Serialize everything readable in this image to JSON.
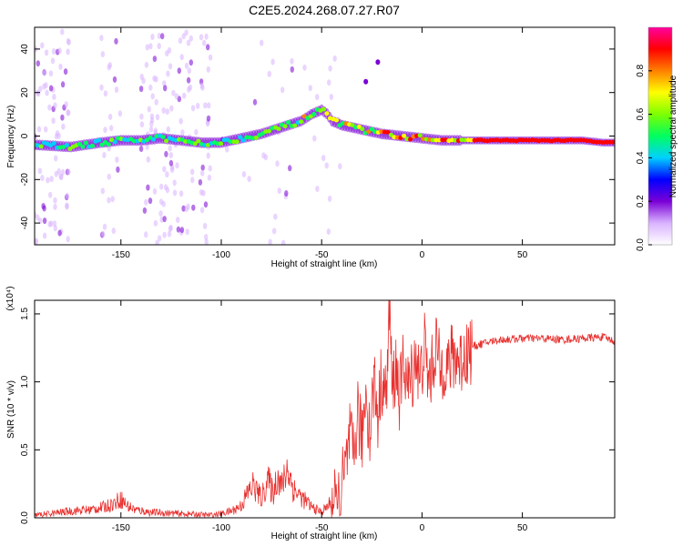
{
  "chart_data": [
    {
      "type": "heatmap",
      "title": "C2E5.2024.268.07.27.R07",
      "xlabel": "Height of straight line (km)",
      "ylabel": "Frequency (Hz)",
      "xlim": [
        -193,
        96
      ],
      "ylim": [
        -50,
        50
      ],
      "xticks": [
        -150,
        -100,
        -50,
        0,
        50
      ],
      "yticks": [
        -40,
        -20,
        0,
        20,
        40
      ],
      "ridge": {
        "x": [
          -193,
          -175,
          -160,
          -150,
          -140,
          -130,
          -120,
          -110,
          -100,
          -90,
          -80,
          -70,
          -60,
          -55,
          -50,
          -47,
          -45,
          -40,
          -30,
          -20,
          -10,
          0,
          10,
          20,
          40,
          60,
          80,
          90,
          96
        ],
        "freq": [
          -4,
          -5,
          -3,
          -2,
          -2,
          -1,
          -2,
          -3,
          -3,
          -1,
          1,
          4,
          7,
          10,
          12,
          10,
          7,
          5,
          3,
          1,
          0,
          -1,
          -2,
          -2,
          -2,
          -2,
          -2,
          -3,
          -3
        ]
      },
      "outliers": [
        {
          "x": -22,
          "freq": 34
        },
        {
          "x": -28,
          "freq": 25
        }
      ],
      "colorbar": {
        "label": "Normalized spectral amplitude",
        "ticks": [
          "0.0",
          "0.2",
          "0.4",
          "0.6",
          "0.8"
        ],
        "range": [
          0,
          1
        ],
        "colors": [
          "#ffffff",
          "#d9b3ff",
          "#7a00d6",
          "#0000ff",
          "#00d0ff",
          "#00ff60",
          "#7dff00",
          "#ffff00",
          "#ff8000",
          "#ff0000",
          "#ff00a0"
        ]
      }
    },
    {
      "type": "line",
      "xlabel": "Height of straight line (km)",
      "ylabel": "SNR (10 * v/v)",
      "multiplier": "(x10⁴)",
      "xlim": [
        -193,
        96
      ],
      "ylim": [
        0,
        1.6
      ],
      "xticks": [
        -150,
        -100,
        -50,
        0,
        50
      ],
      "yticks": [
        "0.0",
        "0.5",
        "1.0",
        "1.5"
      ],
      "series": [
        {
          "name": "SNR",
          "color": "#e8312f",
          "x": [
            -193,
            -185,
            -175,
            -165,
            -158,
            -153,
            -150,
            -147,
            -143,
            -135,
            -120,
            -105,
            -100,
            -95,
            -90,
            -87,
            -84,
            -80,
            -77,
            -74,
            -72,
            -70,
            -67,
            -64,
            -60,
            -55,
            -50,
            -45,
            -42,
            -40,
            -38,
            -36,
            -34,
            -32,
            -30,
            -28,
            -26,
            -24,
            -22,
            -20,
            -18,
            -16,
            -15,
            -13,
            -11,
            -9,
            -7,
            -5,
            -3,
            -1,
            1,
            3,
            5,
            7,
            9,
            11,
            13,
            16,
            19,
            22,
            25,
            30,
            35,
            40,
            50,
            60,
            70,
            80,
            90,
            96
          ],
          "values": [
            0.02,
            0.03,
            0.05,
            0.06,
            0.08,
            0.11,
            0.14,
            0.09,
            0.06,
            0.04,
            0.03,
            0.02,
            0.03,
            0.05,
            0.09,
            0.18,
            0.24,
            0.14,
            0.28,
            0.18,
            0.33,
            0.22,
            0.37,
            0.21,
            0.15,
            0.08,
            0.04,
            0.12,
            0.05,
            0.22,
            0.35,
            0.58,
            0.42,
            0.8,
            0.55,
            0.96,
            0.62,
            1.02,
            0.75,
            1.05,
            0.85,
            1.58,
            0.92,
            1.12,
            0.88,
            1.18,
            0.95,
            1.05,
            1.22,
            0.98,
            1.28,
            1.02,
            1.08,
            1.3,
            1.06,
            1.17,
            1.1,
            1.2,
            1.15,
            1.22,
            1.26,
            1.28,
            1.3,
            1.31,
            1.32,
            1.32,
            1.31,
            1.32,
            1.33,
            1.3
          ]
        }
      ]
    }
  ]
}
